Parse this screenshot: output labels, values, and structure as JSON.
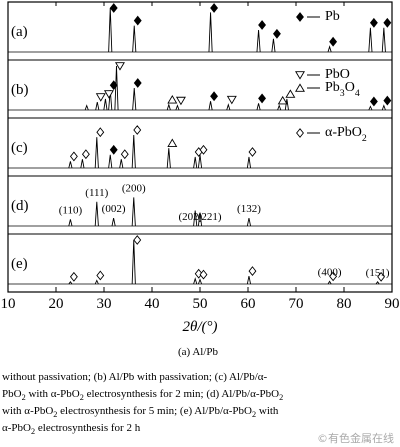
{
  "chart_data": {
    "type": "xrd",
    "xlabel": "2θ/(°)",
    "xlim": [
      10,
      90
    ],
    "xticks": [
      10,
      20,
      30,
      40,
      50,
      60,
      70,
      80,
      90
    ],
    "legend": [
      {
        "name": "Pb",
        "symbol": "diamond-filled",
        "panel": 0
      },
      {
        "name": "PbO",
        "symbol": "triangle-down",
        "panel": 1
      },
      {
        "name": "Pb3O4",
        "symbol": "triangle-up",
        "panel": 1
      },
      {
        "name": "α-PbO2",
        "symbol": "diamond-open",
        "panel": 2
      }
    ],
    "panels": [
      {
        "label": "(a)",
        "peaks": {
          "x": [
            31.3,
            36.3,
            52.2,
            62.2,
            65.3,
            77.0,
            85.5,
            88.3
          ],
          "intensity": [
            100,
            60,
            90,
            50,
            30,
            12,
            55,
            55
          ]
        },
        "markers": {
          "x": [
            31.3,
            36.3,
            52.2,
            62.2,
            65.3,
            77.0,
            85.5,
            88.3
          ],
          "phase": [
            0,
            0,
            0,
            0,
            0,
            0,
            0,
            0
          ]
        }
      },
      {
        "label": "(b)",
        "peaks": {
          "x": [
            26.4,
            28.6,
            30.3,
            31.3,
            32.6,
            36.3,
            43.5,
            45.3,
            52.2,
            55.9,
            62.2,
            66.5,
            68.1,
            85.5,
            88.3
          ],
          "intensity": [
            10,
            18,
            25,
            45,
            100,
            50,
            12,
            10,
            20,
            12,
            15,
            10,
            25,
            8,
            10
          ]
        },
        "markers": {
          "x": [
            28.6,
            30.3,
            31.3,
            32.6,
            36.3,
            43.5,
            45.3,
            52.2,
            55.9,
            62.2,
            66.5,
            68.1,
            85.5,
            88.3
          ],
          "phase": [
            1,
            1,
            0,
            1,
            0,
            2,
            1,
            0,
            1,
            0,
            2,
            2,
            0,
            0
          ]
        }
      },
      {
        "label": "(c)",
        "peaks": {
          "x": [
            23.0,
            25.5,
            28.5,
            31.3,
            33.6,
            36.2,
            43.5,
            49.0,
            50.0,
            60.2
          ],
          "intensity": [
            15,
            20,
            70,
            30,
            20,
            75,
            45,
            25,
            30,
            25
          ]
        },
        "markers": {
          "x": [
            23.0,
            25.5,
            28.5,
            31.3,
            33.6,
            36.2,
            43.5,
            49.0,
            50.0,
            60.2
          ],
          "phase": [
            3,
            3,
            3,
            0,
            3,
            3,
            2,
            3,
            3,
            3
          ]
        }
      },
      {
        "label": "(d)",
        "peaks": {
          "x": [
            23.0,
            28.5,
            32.0,
            36.2,
            49.0,
            50.0,
            60.2
          ],
          "intensity": [
            15,
            55,
            18,
            65,
            35,
            30,
            18
          ]
        },
        "annotations": [
          {
            "x": 23.0,
            "text": "(110)"
          },
          {
            "x": 28.5,
            "text": "(111)"
          },
          {
            "x": 32.0,
            "text": "(002)"
          },
          {
            "x": 36.2,
            "text": "(200)"
          },
          {
            "x": 48.0,
            "text": "(202)"
          },
          {
            "x": 52.0,
            "text": "(221)"
          },
          {
            "x": 60.2,
            "text": "(132)"
          }
        ]
      },
      {
        "label": "(e)",
        "peaks": {
          "x": [
            23.0,
            28.5,
            36.2,
            49.0,
            50.0,
            60.2,
            77.0,
            87.0
          ],
          "intensity": [
            5,
            8,
            100,
            12,
            10,
            18,
            6,
            5
          ]
        },
        "markers": {
          "x": [
            23.0,
            28.5,
            36.2,
            49.0,
            50.0,
            60.2,
            77.0,
            87.0
          ],
          "phase": [
            3,
            3,
            3,
            3,
            3,
            3,
            3,
            3
          ]
        },
        "annotations": [
          {
            "x": 77.0,
            "text": "(400)"
          },
          {
            "x": 87.0,
            "text": "(151)"
          }
        ]
      }
    ]
  },
  "caption": {
    "title": "(a) Al/Pb",
    "lines": [
      "without passivation; (b) Al/Pb with passivation; (c) Al/Pb/α-",
      "PbO2 with α-PbO2 electrosynthesis for 2 min; (d) Al/Pb/α-PbO2",
      "with α-PbO2 electrosynthesis for 5 min; (e) Al/Pb/α-PbO2 with",
      "α-PbO2 electrosynthesis for 2 h"
    ]
  },
  "watermark": "©有色金属在线"
}
